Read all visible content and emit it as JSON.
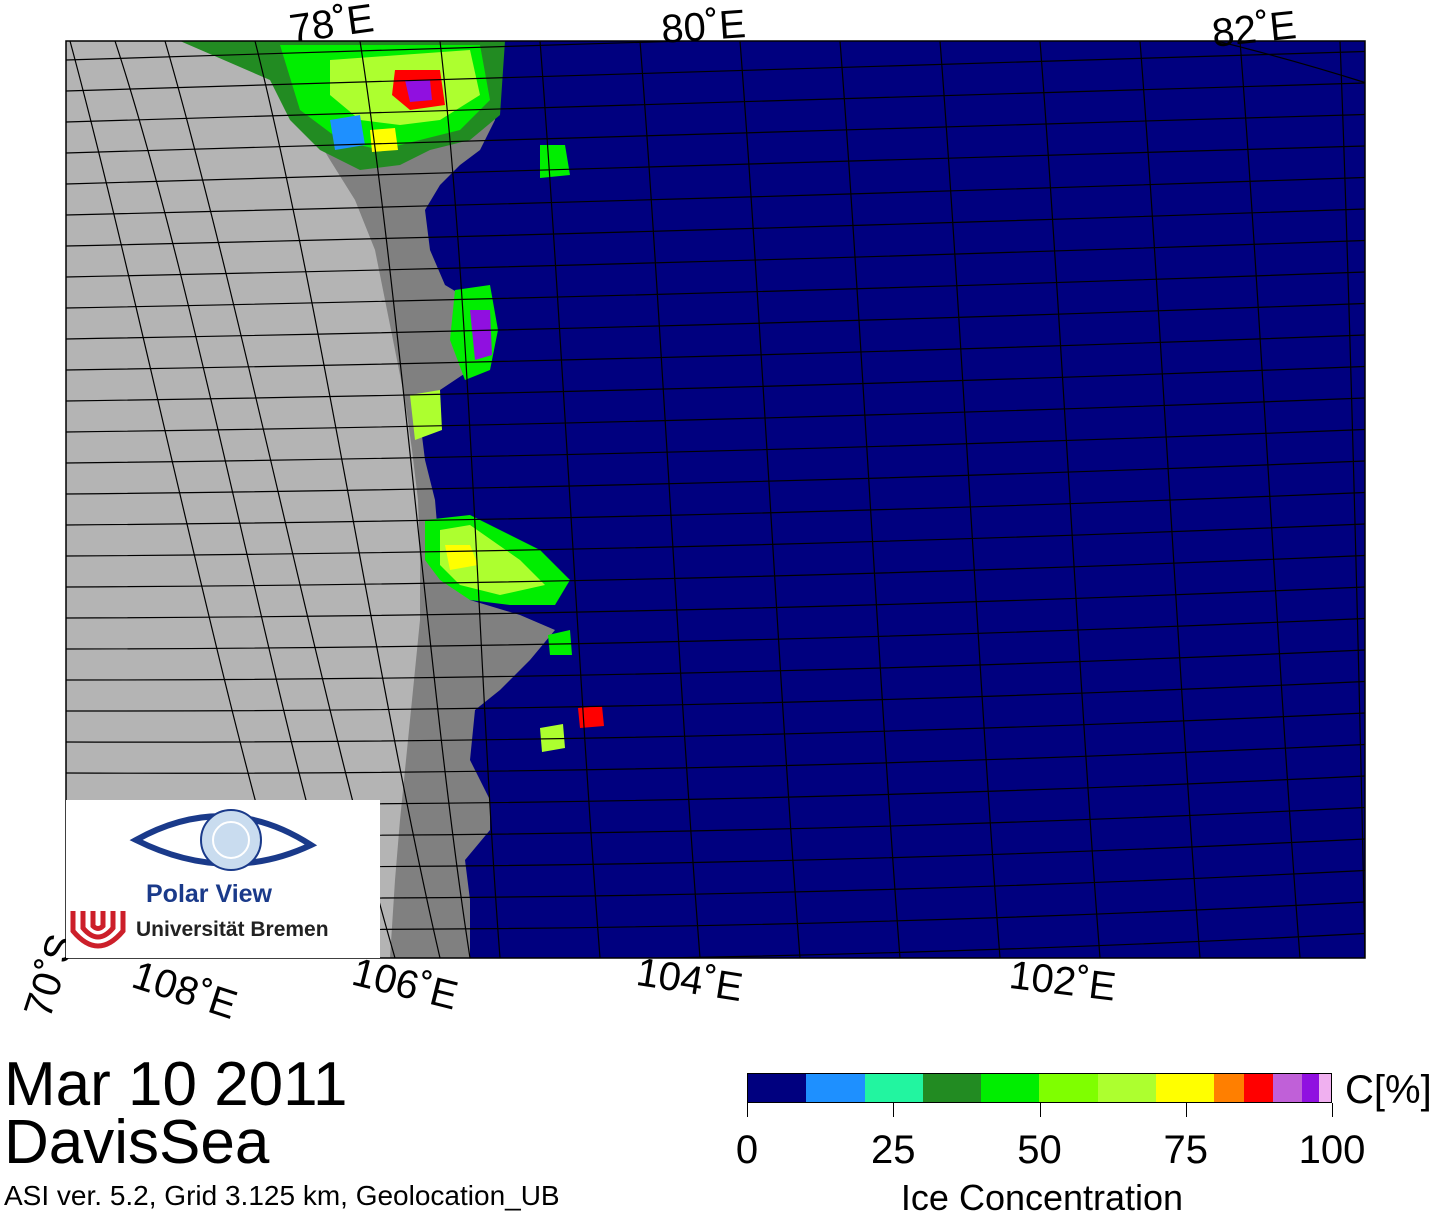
{
  "map": {
    "region": "DavisSea",
    "date": "Mar 10 2011",
    "product": "ASI ver. 5.2,  Grid 3.125 km, Geolocation_UB",
    "top_lon_labels": [
      "78˚E",
      "80˚E",
      "82˚E"
    ],
    "bottom_lon_labels": [
      "108˚E",
      "106˚E",
      "104˚E",
      "102˚E"
    ],
    "lat_labels": [
      "70˚S"
    ],
    "colors": {
      "ocean": "#00007f",
      "land": "#b4b4b4",
      "ice_shelf": "#808080",
      "grid": "#000000"
    }
  },
  "logo": {
    "name": "Polar View",
    "institution": "Universität Bremen",
    "logo_colors": {
      "eye": "#1a3a8a",
      "uni": "#cc1f2a"
    }
  },
  "colorbar": {
    "title": "Ice Concentration",
    "unit": "C[%]",
    "ticks": [
      "0",
      "25",
      "50",
      "75",
      "100"
    ],
    "bins": [
      {
        "from": 0,
        "to": 10,
        "color": "#00007f"
      },
      {
        "from": 10,
        "to": 20,
        "color": "#1e90ff"
      },
      {
        "from": 20,
        "to": 30,
        "color": "#22f5a0"
      },
      {
        "from": 30,
        "to": 40,
        "color": "#228b22"
      },
      {
        "from": 40,
        "to": 50,
        "color": "#00ee00"
      },
      {
        "from": 50,
        "to": 60,
        "color": "#7fff00"
      },
      {
        "from": 60,
        "to": 70,
        "color": "#adff2f"
      },
      {
        "from": 70,
        "to": 80,
        "color": "#ffff00"
      },
      {
        "from": 80,
        "to": 85,
        "color": "#ff7f00"
      },
      {
        "from": 85,
        "to": 90,
        "color": "#ff0000"
      },
      {
        "from": 90,
        "to": 95,
        "color": "#c060d8"
      },
      {
        "from": 95,
        "to": 98,
        "color": "#9010e0"
      },
      {
        "from": 98,
        "to": 100,
        "color": "#f0b0f0"
      }
    ]
  }
}
